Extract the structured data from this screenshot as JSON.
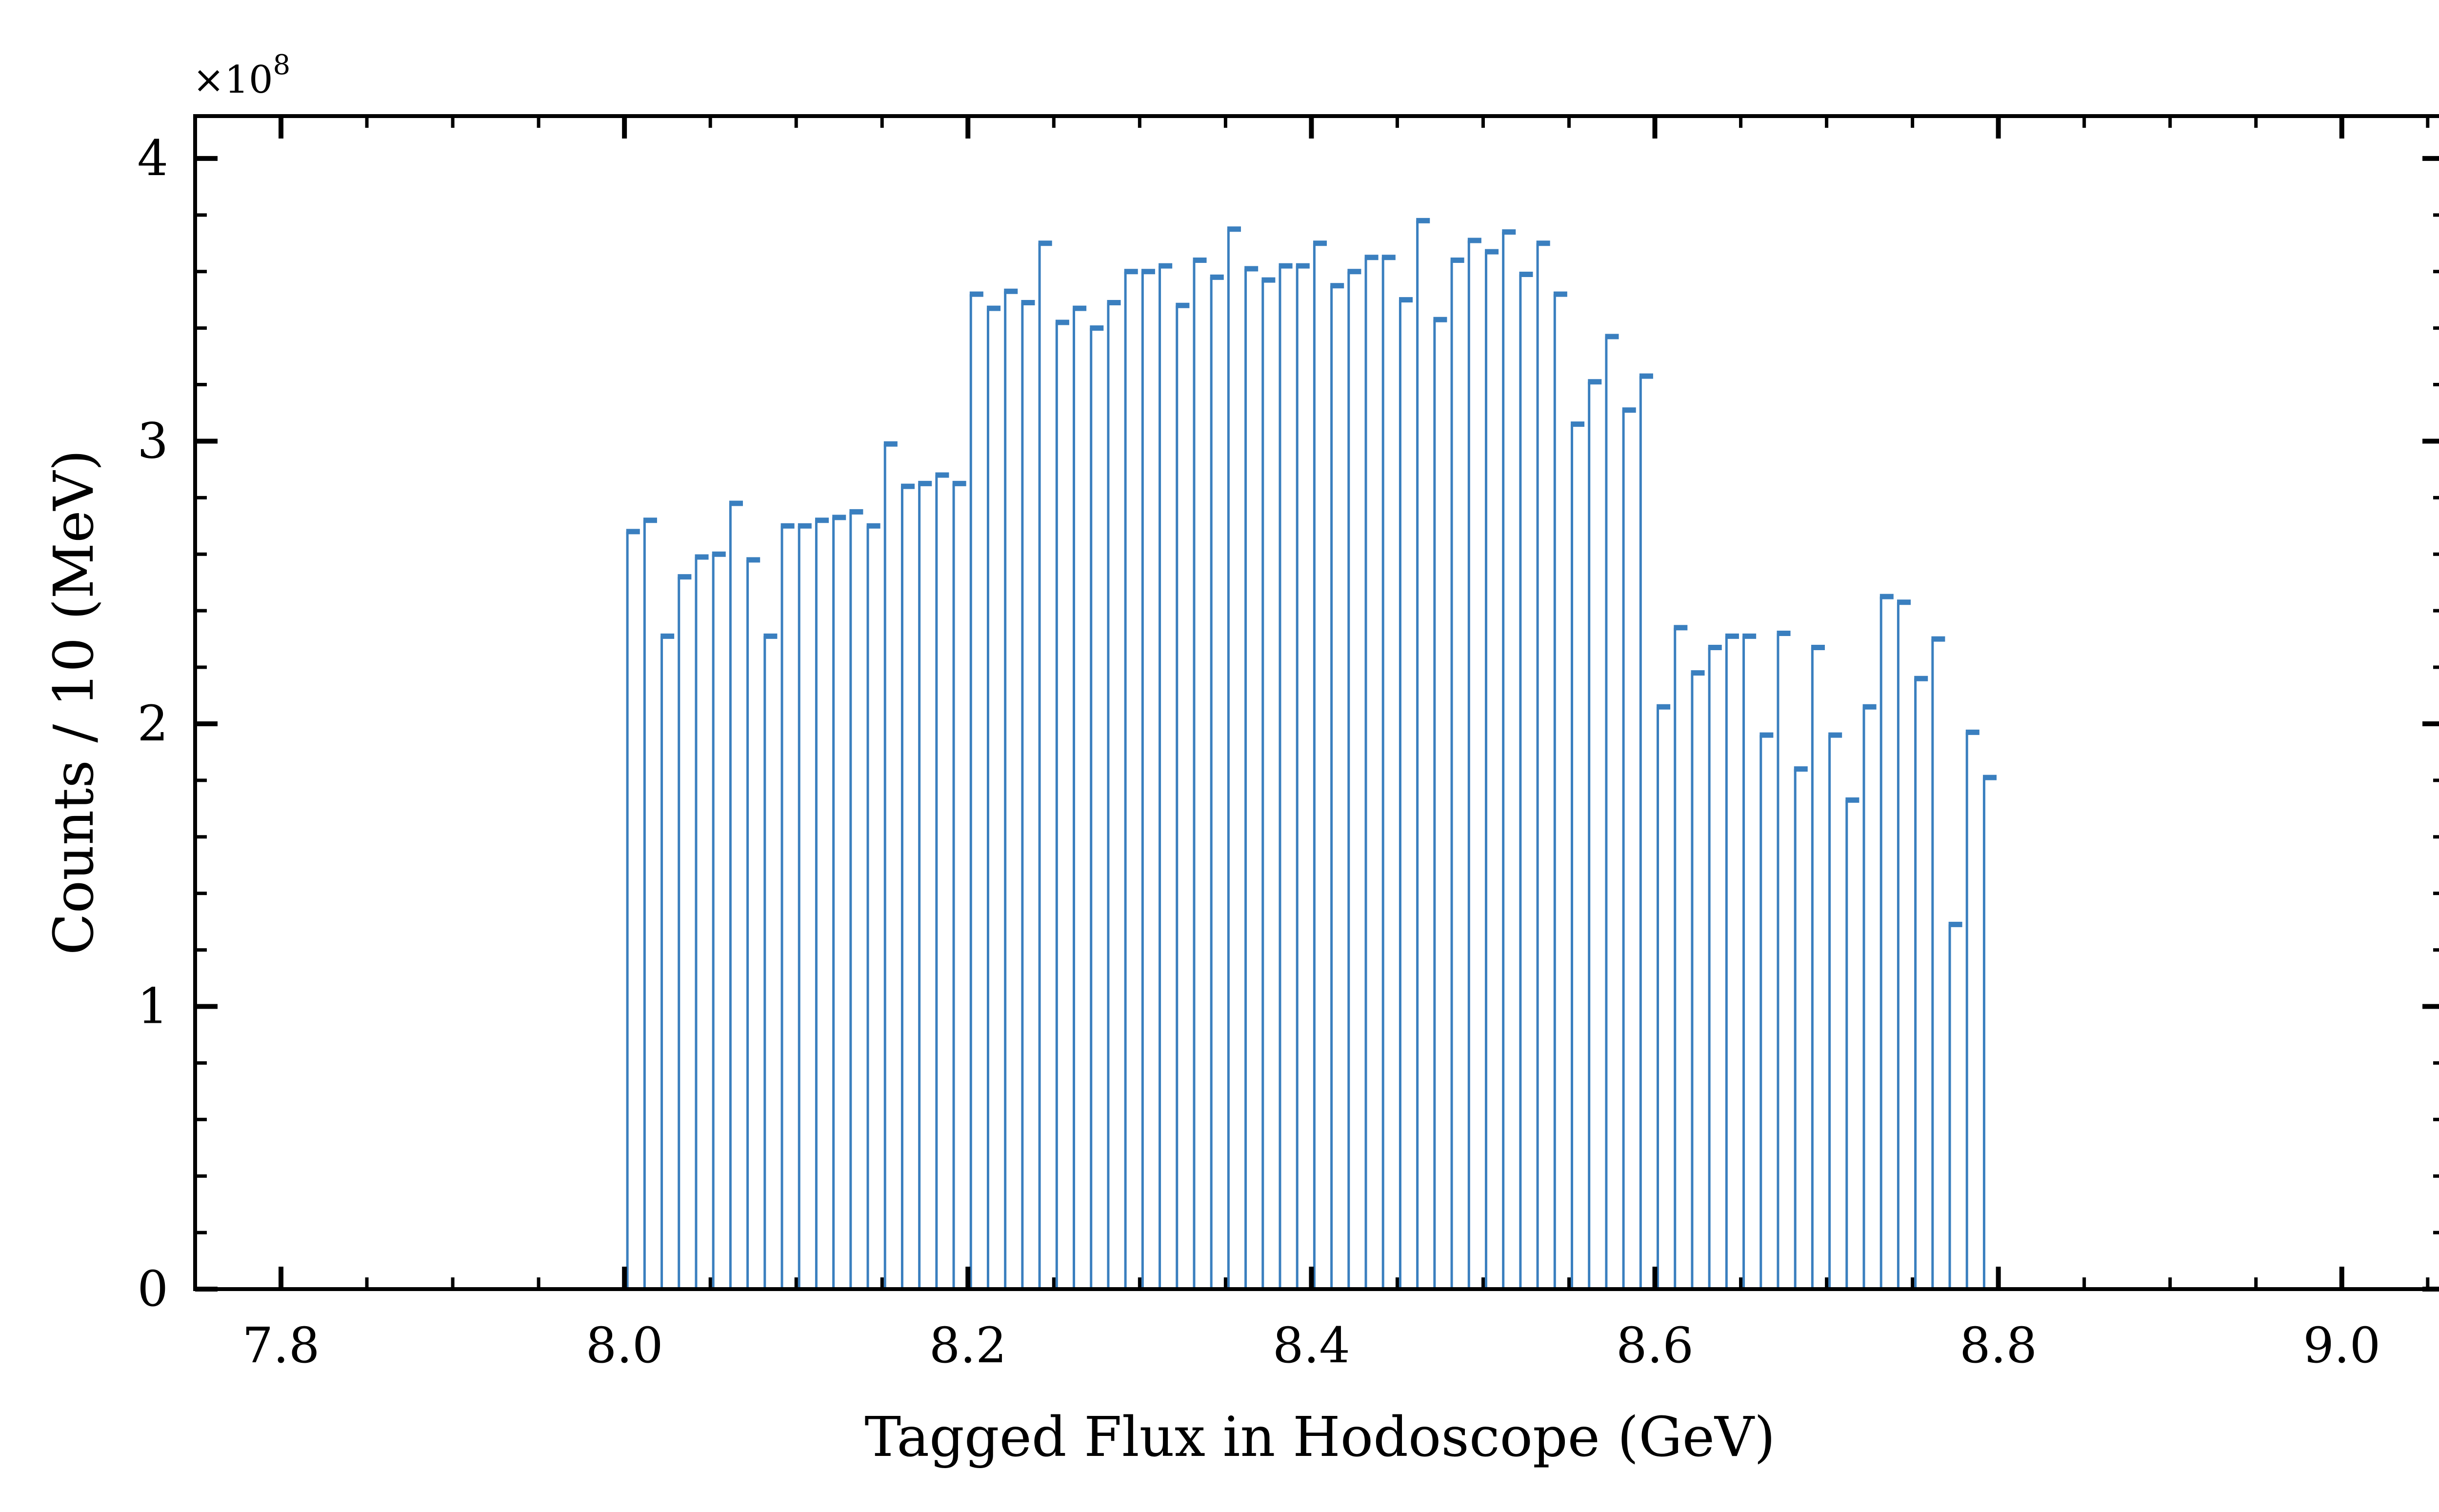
{
  "chart_data": {
    "type": "bar",
    "title": "",
    "xlabel": "Tagged Flux in Hodoscope (GeV)",
    "ylabel": "Counts / 10 (MeV)",
    "y_multiplier_label": "×10",
    "y_multiplier_exponent": "8",
    "y_scale": 100000000,
    "xlim": [
      7.75,
      9.06
    ],
    "ylim": [
      0,
      4.15
    ],
    "x_ticks": [
      7.8,
      8.0,
      8.2,
      8.4,
      8.6,
      8.8,
      9.0
    ],
    "x_tick_labels": [
      "7.8",
      "8.0",
      "8.2",
      "8.4",
      "8.6",
      "8.8",
      "9.0"
    ],
    "y_ticks": [
      0,
      1,
      2,
      3,
      4
    ],
    "y_tick_labels": [
      "0",
      "1",
      "2",
      "3",
      "4"
    ],
    "bin_width": 0.01,
    "colors": {
      "series": "#3a7fbf",
      "axes": "#000000"
    },
    "series": [
      {
        "x": [
          8.005,
          8.015,
          8.025,
          8.035,
          8.045,
          8.055,
          8.065,
          8.075,
          8.085,
          8.095,
          8.105,
          8.115,
          8.125,
          8.135,
          8.145,
          8.155,
          8.165,
          8.175,
          8.185,
          8.195,
          8.205,
          8.215,
          8.225,
          8.235,
          8.245,
          8.255,
          8.265,
          8.275,
          8.285,
          8.295,
          8.305,
          8.315,
          8.325,
          8.335,
          8.345,
          8.355,
          8.365,
          8.375,
          8.385,
          8.395,
          8.405,
          8.415,
          8.425,
          8.435,
          8.445,
          8.455,
          8.465,
          8.475,
          8.485,
          8.495,
          8.505,
          8.515,
          8.525,
          8.535,
          8.545,
          8.555,
          8.565,
          8.575,
          8.585,
          8.595,
          8.605,
          8.615,
          8.625,
          8.635,
          8.645,
          8.655,
          8.665,
          8.675,
          8.685,
          8.695,
          8.705,
          8.715,
          8.725,
          8.735,
          8.745,
          8.755,
          8.765,
          8.775,
          8.785,
          8.795
        ],
        "values": [
          2.68,
          2.72,
          2.31,
          2.52,
          2.59,
          2.6,
          2.78,
          2.58,
          2.31,
          2.7,
          2.7,
          2.72,
          2.73,
          2.75,
          2.7,
          2.99,
          2.84,
          2.85,
          2.88,
          2.85,
          3.52,
          3.47,
          3.53,
          3.49,
          3.7,
          3.42,
          3.47,
          3.4,
          3.49,
          3.6,
          3.6,
          3.62,
          3.48,
          3.64,
          3.58,
          3.75,
          3.61,
          3.57,
          3.62,
          3.62,
          3.7,
          3.55,
          3.6,
          3.65,
          3.65,
          3.5,
          3.78,
          3.43,
          3.64,
          3.71,
          3.67,
          3.74,
          3.59,
          3.7,
          3.52,
          3.06,
          3.21,
          3.37,
          3.11,
          3.23,
          2.06,
          2.34,
          2.18,
          2.27,
          2.31,
          2.31,
          1.96,
          2.32,
          1.84,
          2.27,
          1.96,
          1.73,
          2.06,
          2.45,
          2.43,
          2.16,
          2.3,
          1.29,
          1.97,
          1.81
        ]
      }
    ]
  }
}
